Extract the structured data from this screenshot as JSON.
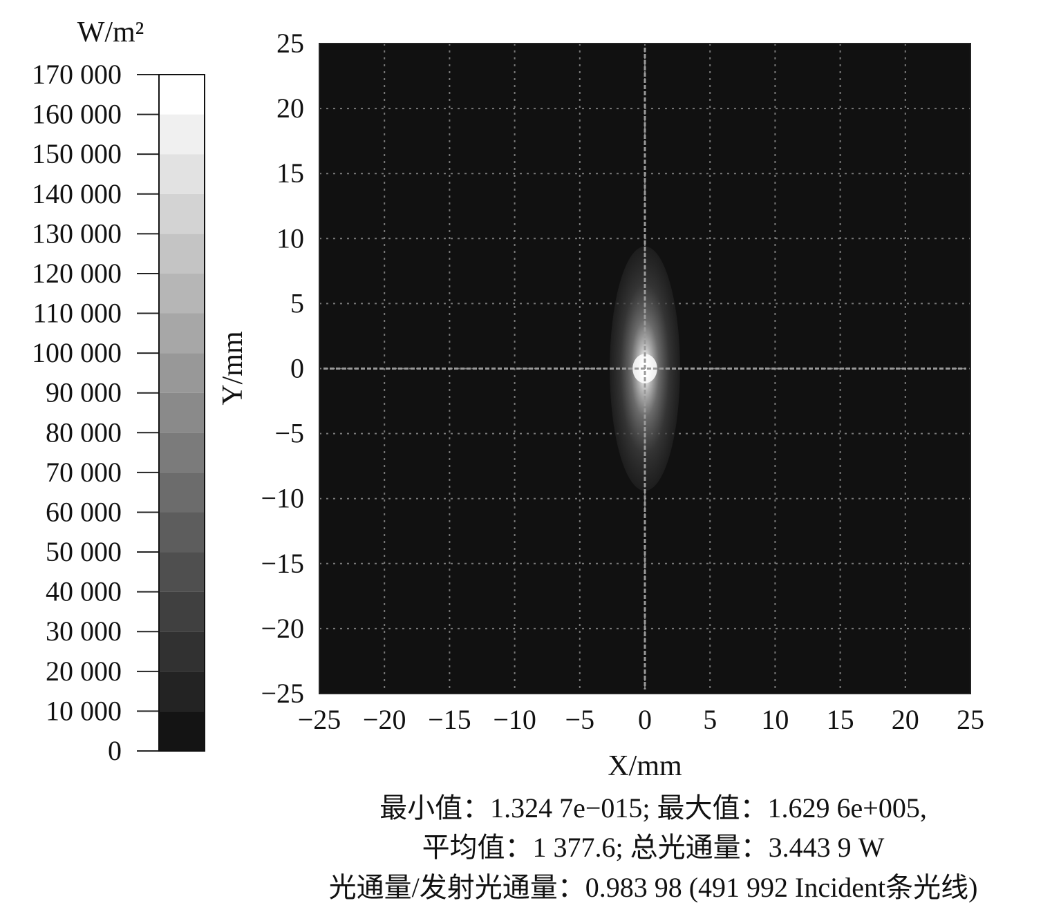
{
  "chart_data": {
    "type": "heatmap",
    "colorbar": {
      "unit": "W/m²",
      "range": [
        0,
        170000
      ],
      "tick_labels": [
        "170 000",
        "160 000",
        "150 000",
        "140 000",
        "130 000",
        "120 000",
        "110 000",
        "100 000",
        "90 000",
        "80 000",
        "70 000",
        "60 000",
        "50 000",
        "40 000",
        "30 000",
        "20 000",
        "10 000",
        "0"
      ],
      "colormap": "grayscale"
    },
    "xlabel": "X/mm",
    "ylabel": "Y/mm",
    "xlim": [
      -25,
      25
    ],
    "ylim": [
      -25,
      25
    ],
    "xticks": [
      "−25",
      "−20",
      "−15",
      "−10",
      "−5",
      "0",
      "5",
      "10",
      "15",
      "20",
      "25"
    ],
    "yticks": [
      "25",
      "20",
      "15",
      "10",
      "5",
      "0",
      "−5",
      "−10",
      "−15",
      "−20",
      "−25"
    ],
    "grid": true,
    "spot": {
      "center": [
        0,
        0
      ],
      "half_width_x": 2.7,
      "half_height_y": 9.4,
      "peak_value": 162960,
      "cross_lines": true
    },
    "stats": {
      "line1": "最小值：1.324 7e−015; 最大值：1.629 6e+005,",
      "line2": "平均值：1 377.6; 总光通量：3.443 9 W",
      "line3": "光通量/发射光通量：0.983 98 (491 992 Incident条光线)"
    }
  },
  "colors": {
    "background": "#ffffff",
    "plot_bg": "#111111",
    "grid": "#7a7a7a",
    "text": "#111111"
  }
}
